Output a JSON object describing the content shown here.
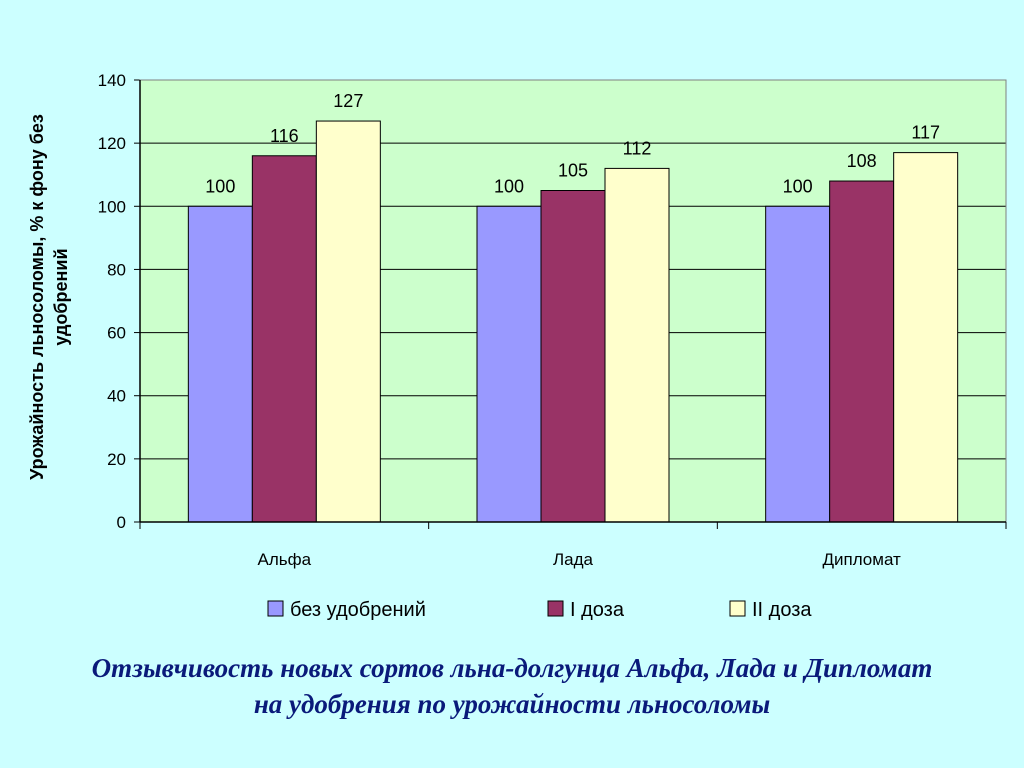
{
  "chart_data": {
    "type": "bar",
    "categories": [
      "Альфа",
      "Лада",
      "Дипломат"
    ],
    "series": [
      {
        "name": "без удобрений",
        "values": [
          100,
          100,
          100
        ],
        "color": "#9999ff"
      },
      {
        "name": "I доза",
        "values": [
          116,
          105,
          108
        ],
        "color": "#993366"
      },
      {
        "name": "II доза",
        "values": [
          127,
          112,
          117
        ],
        "color": "#ffffcc"
      }
    ],
    "ylabel_lines": [
      "Урожайность льносоломы, % к фону без",
      "удобрений"
    ],
    "ylim": [
      0,
      140
    ],
    "yticks": [
      0,
      20,
      40,
      60,
      80,
      100,
      120,
      140
    ],
    "grid": true,
    "legend_position": "bottom",
    "plot_background": "#ccffcc"
  },
  "caption": {
    "line1": "Отзывчивость новых сортов льна-долгунца Альфа, Лада и Дипломат",
    "line2": "на удобрения по урожайности льносоломы"
  },
  "colors": {
    "page_background": "#ccffff",
    "caption_text": "#0a1a7a"
  }
}
